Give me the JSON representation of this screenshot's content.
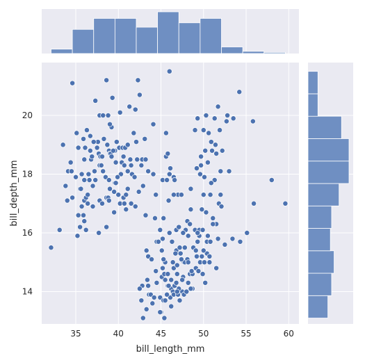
{
  "chart_data": {
    "type": "scatter",
    "title": "",
    "xlabel": "bill_length_mm",
    "ylabel": "bill_depth_mm",
    "xlim": [
      31.0,
      61.2
    ],
    "ylim": [
      12.9,
      21.8
    ],
    "xticks": [
      35,
      40,
      45,
      50,
      55,
      60
    ],
    "yticks": [
      14,
      16,
      18,
      20
    ],
    "grid": true,
    "colors": {
      "background": "#eaeaf2",
      "grid": "#ffffff",
      "point": "#4c72b0",
      "bar": "#6f8fc2"
    },
    "points": [
      [
        32.1,
        15.5
      ],
      [
        33.1,
        16.1
      ],
      [
        33.5,
        19.0
      ],
      [
        34.0,
        17.1
      ],
      [
        34.1,
        18.1
      ],
      [
        34.4,
        18.4
      ],
      [
        34.5,
        18.1
      ],
      [
        34.6,
        21.1
      ],
      [
        34.6,
        17.2
      ],
      [
        35.0,
        17.9
      ],
      [
        35.1,
        19.4
      ],
      [
        35.2,
        15.9
      ],
      [
        35.3,
        18.9
      ],
      [
        35.5,
        17.5
      ],
      [
        35.5,
        16.2
      ],
      [
        35.6,
        17.5
      ],
      [
        35.7,
        16.9
      ],
      [
        35.7,
        18.0
      ],
      [
        35.9,
        19.2
      ],
      [
        35.9,
        16.6
      ],
      [
        36.0,
        18.5
      ],
      [
        36.0,
        17.1
      ],
      [
        36.0,
        17.8
      ],
      [
        36.0,
        16.4
      ],
      [
        36.2,
        17.2
      ],
      [
        36.2,
        16.1
      ],
      [
        36.3,
        19.5
      ],
      [
        36.4,
        17.0
      ],
      [
        36.5,
        18.0
      ],
      [
        36.6,
        17.8
      ],
      [
        36.7,
        19.3
      ],
      [
        36.7,
        18.8
      ],
      [
        36.8,
        18.5
      ],
      [
        36.9,
        18.6
      ],
      [
        37.0,
        16.9
      ],
      [
        37.2,
        18.1
      ],
      [
        37.3,
        20.5
      ],
      [
        37.3,
        17.8
      ],
      [
        37.5,
        18.9
      ],
      [
        37.6,
        19.1
      ],
      [
        37.7,
        18.7
      ],
      [
        37.7,
        16.0
      ],
      [
        37.8,
        20.0
      ],
      [
        37.8,
        18.3
      ],
      [
        37.8,
        17.1
      ],
      [
        37.9,
        18.6
      ],
      [
        38.1,
        18.6
      ],
      [
        38.1,
        17.0
      ],
      [
        38.2,
        18.1
      ],
      [
        38.2,
        20.0
      ],
      [
        38.3,
        19.2
      ],
      [
        38.5,
        17.9
      ],
      [
        38.6,
        21.2
      ],
      [
        38.6,
        17.2
      ],
      [
        38.7,
        19.0
      ],
      [
        38.8,
        17.2
      ],
      [
        38.8,
        20.0
      ],
      [
        38.9,
        18.8
      ],
      [
        38.9,
        17.8
      ],
      [
        39.0,
        17.5
      ],
      [
        39.0,
        18.7
      ],
      [
        39.1,
        18.7
      ],
      [
        39.2,
        19.6
      ],
      [
        39.2,
        18.6
      ],
      [
        39.3,
        20.6
      ],
      [
        39.5,
        17.4
      ],
      [
        39.5,
        16.7
      ],
      [
        39.6,
        17.7
      ],
      [
        39.6,
        18.8
      ],
      [
        39.7,
        18.4
      ],
      [
        39.7,
        17.7
      ],
      [
        39.8,
        19.1
      ],
      [
        40.1,
        18.9
      ],
      [
        40.2,
        17.0
      ],
      [
        40.2,
        20.1
      ],
      [
        40.3,
        18.0
      ],
      [
        40.5,
        18.9
      ],
      [
        40.6,
        18.6
      ],
      [
        40.6,
        17.2
      ],
      [
        40.7,
        17.0
      ],
      [
        40.8,
        18.9
      ],
      [
        40.9,
        16.8
      ],
      [
        41.1,
        17.5
      ],
      [
        41.1,
        18.1
      ],
      [
        41.1,
        19.0
      ],
      [
        41.3,
        20.3
      ],
      [
        41.4,
        18.5
      ],
      [
        41.5,
        18.3
      ],
      [
        41.6,
        18.0
      ],
      [
        41.8,
        19.4
      ],
      [
        42.0,
        20.2
      ],
      [
        42.1,
        19.1
      ],
      [
        42.2,
        18.5
      ],
      [
        42.3,
        21.2
      ],
      [
        42.5,
        20.7
      ],
      [
        42.7,
        18.3
      ],
      [
        42.8,
        18.5
      ],
      [
        42.9,
        17.6
      ],
      [
        43.1,
        19.2
      ],
      [
        43.2,
        18.5
      ],
      [
        43.2,
        16.6
      ],
      [
        43.3,
        13.4
      ],
      [
        43.4,
        14.4
      ],
      [
        43.5,
        18.1
      ],
      [
        43.5,
        15.2
      ],
      [
        43.6,
        13.9
      ],
      [
        43.8,
        13.9
      ],
      [
        44.0,
        13.6
      ],
      [
        44.1,
        19.7
      ],
      [
        44.1,
        18.0
      ],
      [
        44.4,
        17.3
      ],
      [
        44.5,
        15.7
      ],
      [
        44.9,
        13.8
      ],
      [
        45.1,
        14.5
      ],
      [
        45.2,
        14.8
      ],
      [
        45.2,
        17.8
      ],
      [
        45.3,
        13.7
      ],
      [
        45.4,
        14.6
      ],
      [
        45.5,
        13.7
      ],
      [
        45.5,
        15.0
      ],
      [
        45.6,
        19.4
      ],
      [
        45.8,
        14.2
      ],
      [
        45.9,
        17.1
      ],
      [
        46.0,
        21.5
      ],
      [
        46.1,
        18.2
      ],
      [
        46.2,
        14.4
      ],
      [
        46.4,
        15.0
      ],
      [
        46.5,
        14.8
      ],
      [
        46.5,
        17.9
      ],
      [
        46.6,
        17.8
      ],
      [
        46.8,
        15.4
      ],
      [
        46.9,
        14.6
      ],
      [
        47.0,
        17.3
      ],
      [
        47.2,
        13.7
      ],
      [
        47.3,
        15.3
      ],
      [
        47.5,
        14.0
      ],
      [
        47.6,
        14.5
      ],
      [
        47.7,
        15.0
      ],
      [
        47.8,
        15.0
      ],
      [
        48.1,
        16.4
      ],
      [
        48.2,
        14.3
      ],
      [
        48.4,
        14.6
      ],
      [
        48.5,
        17.5
      ],
      [
        48.7,
        14.1
      ],
      [
        49.0,
        16.1
      ],
      [
        49.1,
        14.8
      ],
      [
        49.2,
        18.2
      ],
      [
        49.3,
        19.9
      ],
      [
        49.5,
        16.1
      ],
      [
        49.6,
        15.0
      ],
      [
        49.7,
        18.6
      ],
      [
        49.8,
        16.8
      ],
      [
        50.0,
        19.5
      ],
      [
        50.1,
        15.0
      ],
      [
        50.2,
        18.8
      ],
      [
        50.3,
        20.0
      ],
      [
        50.4,
        15.7
      ],
      [
        50.5,
        18.4
      ],
      [
        50.6,
        19.4
      ],
      [
        50.7,
        15.0
      ],
      [
        50.8,
        17.3
      ],
      [
        50.9,
        19.1
      ],
      [
        51.0,
        18.8
      ],
      [
        51.1,
        16.5
      ],
      [
        51.3,
        19.9
      ],
      [
        51.4,
        19.0
      ],
      [
        51.5,
        16.3
      ],
      [
        51.7,
        20.3
      ],
      [
        51.9,
        19.5
      ],
      [
        52.0,
        18.1
      ],
      [
        52.2,
        18.8
      ],
      [
        52.5,
        15.6
      ],
      [
        52.7,
        19.8
      ],
      [
        52.8,
        20.0
      ],
      [
        53.4,
        15.8
      ],
      [
        53.5,
        19.9
      ],
      [
        54.2,
        20.8
      ],
      [
        54.3,
        15.7
      ],
      [
        55.1,
        16.0
      ],
      [
        55.8,
        19.8
      ],
      [
        55.9,
        17.0
      ],
      [
        58.0,
        17.8
      ],
      [
        59.6,
        17.0
      ],
      [
        33.8,
        17.6
      ],
      [
        36.1,
        18.9
      ],
      [
        37.1,
        19.1
      ],
      [
        38.9,
        17.1
      ],
      [
        40.4,
        18.4
      ],
      [
        42.4,
        17.4
      ],
      [
        39.9,
        17.9
      ],
      [
        41.9,
        17.9
      ],
      [
        37.0,
        17.6
      ],
      [
        35.3,
        16.6
      ],
      [
        36.4,
        17.3
      ],
      [
        40.0,
        17.3
      ],
      [
        41.5,
        17.0
      ],
      [
        39.4,
        18.8
      ],
      [
        40.7,
        18.3
      ],
      [
        38.6,
        16.2
      ],
      [
        40.9,
        17.3
      ],
      [
        42.0,
        16.9
      ],
      [
        44.3,
        16.5
      ],
      [
        39.0,
        19.7
      ],
      [
        38.0,
        18.3
      ],
      [
        45.3,
        16.5
      ],
      [
        47.4,
        17.3
      ],
      [
        46.0,
        18.0
      ],
      [
        45.6,
        18.6
      ],
      [
        45.8,
        18.7
      ],
      [
        46.5,
        17.3
      ],
      [
        45.7,
        17.8
      ],
      [
        48.2,
        15.9
      ],
      [
        50.3,
        16.7
      ],
      [
        51.3,
        17.8
      ],
      [
        50.1,
        17.9
      ],
      [
        49.0,
        19.5
      ],
      [
        51.5,
        18.7
      ],
      [
        48.5,
        16.8
      ],
      [
        50.0,
        17.3
      ],
      [
        53.0,
        18.1
      ],
      [
        52.0,
        17.3
      ],
      [
        49.7,
        18.3
      ],
      [
        51.8,
        17.0
      ],
      [
        50.9,
        17.7
      ],
      [
        52.1,
        16.9
      ],
      [
        49.6,
        18.0
      ],
      [
        47.1,
        14.1
      ],
      [
        46.9,
        14.9
      ],
      [
        46.1,
        13.8
      ],
      [
        46.3,
        15.7
      ],
      [
        47.4,
        15.1
      ],
      [
        48.1,
        15.1
      ],
      [
        49.2,
        15.2
      ],
      [
        48.8,
        15.5
      ],
      [
        47.3,
        15.3
      ],
      [
        45.5,
        14.4
      ],
      [
        46.2,
        14.1
      ],
      [
        45.1,
        15.4
      ],
      [
        46.6,
        14.2
      ],
      [
        47.8,
        15.5
      ],
      [
        48.2,
        15.0
      ],
      [
        45.7,
        13.9
      ],
      [
        44.5,
        14.3
      ],
      [
        45.0,
        13.3
      ],
      [
        46.8,
        14.3
      ],
      [
        50.4,
        15.3
      ],
      [
        49.5,
        15.9
      ],
      [
        50.8,
        15.7
      ],
      [
        49.8,
        15.2
      ],
      [
        49.1,
        15.4
      ],
      [
        46.4,
        14.0
      ],
      [
        47.5,
        14.4
      ],
      [
        50.5,
        15.9
      ],
      [
        51.1,
        16.3
      ],
      [
        49.3,
        15.7
      ],
      [
        49.9,
        16.1
      ],
      [
        50.2,
        14.3
      ],
      [
        51.5,
        14.8
      ],
      [
        47.2,
        15.5
      ],
      [
        48.4,
        16.3
      ],
      [
        46.8,
        16.1
      ],
      [
        45.2,
        15.8
      ],
      [
        46.5,
        13.9
      ],
      [
        48.5,
        14.1
      ],
      [
        43.5,
        14.2
      ],
      [
        42.8,
        14.2
      ],
      [
        42.7,
        13.7
      ],
      [
        44.9,
        13.3
      ],
      [
        45.4,
        13.1
      ],
      [
        46.2,
        13.5
      ],
      [
        47.0,
        13.9
      ],
      [
        48.7,
        14.6
      ],
      [
        49.4,
        14.7
      ],
      [
        48.6,
        14.7
      ],
      [
        47.7,
        13.9
      ],
      [
        45.9,
        14.2
      ],
      [
        46.7,
        15.3
      ],
      [
        45.3,
        15.1
      ],
      [
        44.4,
        14.7
      ],
      [
        43.9,
        15.1
      ],
      [
        47.1,
        16.2
      ],
      [
        49.9,
        14.6
      ],
      [
        50.7,
        15.2
      ],
      [
        51.7,
        15.8
      ],
      [
        49.3,
        16.0
      ],
      [
        47.9,
        16.1
      ],
      [
        46.0,
        16.0
      ],
      [
        44.7,
        15.7
      ],
      [
        43.3,
        15.4
      ],
      [
        45.8,
        14.6
      ],
      [
        46.9,
        14.0
      ],
      [
        48.0,
        14.0
      ],
      [
        47.6,
        16.0
      ],
      [
        50.0,
        15.4
      ],
      [
        44.9,
        16.1
      ],
      [
        42.9,
        13.1
      ],
      [
        42.5,
        14.1
      ],
      [
        44.2,
        13.8
      ]
    ],
    "x_hist": [
      2,
      11,
      16,
      16,
      12,
      19,
      14,
      16,
      3,
      1,
      0.5
    ],
    "y_hist": [
      8,
      9.5,
      10.5,
      9,
      9.5,
      12.5,
      16.5,
      16.5,
      13.5,
      4,
      4
    ]
  }
}
